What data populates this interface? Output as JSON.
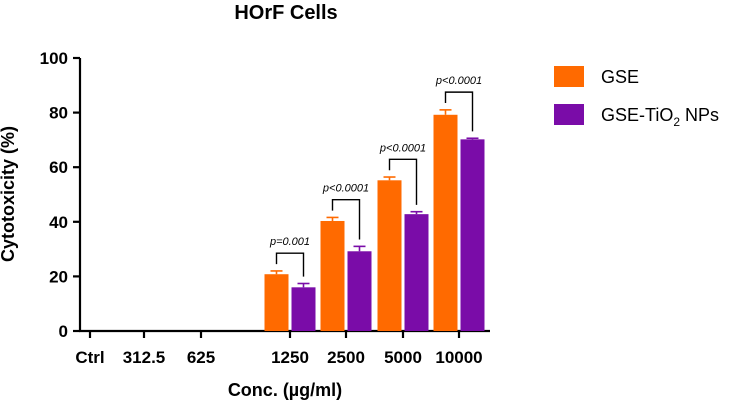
{
  "chart_data": {
    "type": "bar",
    "title": "HOrF Cells",
    "xlabel": "Conc. (µg/ml)",
    "ylabel": "Cytotoxicity (%)",
    "ylim": [
      0,
      100
    ],
    "yticks": [
      "0",
      "20",
      "40",
      "60",
      "80",
      "100"
    ],
    "categories": [
      "Ctrl",
      "312.5",
      "625",
      "1250",
      "2500",
      "5000",
      "10000"
    ],
    "series": [
      {
        "name": "GSE",
        "color": "#FF6A00",
        "values": [
          0,
          0,
          0,
          20.8,
          40.3,
          55.2,
          79.2
        ],
        "errors": [
          0,
          0,
          0,
          1.2,
          1.3,
          1.2,
          1.8
        ]
      },
      {
        "name": "GSE-TiO2 NPs",
        "color": "#7A0CA8",
        "values": [
          0,
          0,
          0,
          16.0,
          29.2,
          42.8,
          70.2
        ],
        "errors": [
          0,
          0,
          0,
          1.4,
          1.8,
          0.9,
          0.4
        ]
      }
    ],
    "legend": {
      "position": "right",
      "items": [
        {
          "label": "GSE"
        },
        {
          "label_main": "GSE-TiO",
          "label_sub": "2",
          "label_tail": " NPs"
        }
      ]
    },
    "annotations": [
      {
        "category_index": 3,
        "text": "p=0.001"
      },
      {
        "category_index": 4,
        "text": "p<0.0001"
      },
      {
        "category_index": 5,
        "text": "p<0.0001"
      },
      {
        "category_index": 6,
        "text": "p<0.0001"
      }
    ]
  }
}
